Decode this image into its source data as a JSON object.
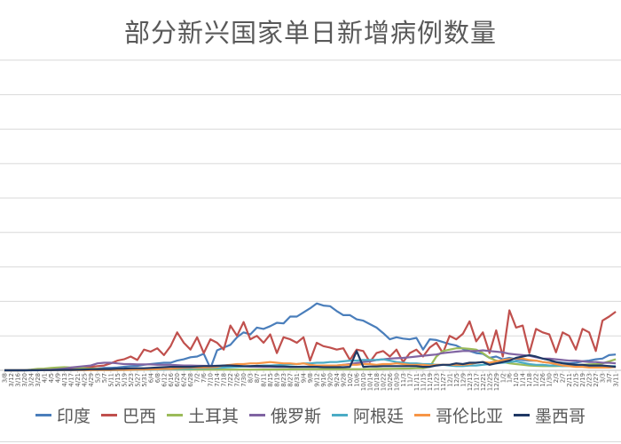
{
  "chart_data": {
    "type": "line",
    "title": "部分新兴国家单日新增病例数量",
    "xlabel": "",
    "ylabel": "",
    "ylim": [
      0,
      450
    ],
    "grid": true,
    "legend_position": "bottom",
    "x": [
      "3/8",
      "3/12",
      "3/16",
      "3/20",
      "3/24",
      "3/28",
      "4/1",
      "4/5",
      "4/9",
      "4/13",
      "4/17",
      "4/21",
      "4/25",
      "4/29",
      "5/3",
      "5/7",
      "5/11",
      "5/15",
      "5/19",
      "5/23",
      "5/27",
      "5/31",
      "6/4",
      "6/8",
      "6/12",
      "6/16",
      "6/20",
      "6/24",
      "6/28",
      "7/2",
      "7/6",
      "7/10",
      "7/14",
      "7/18",
      "7/22",
      "7/26",
      "7/30",
      "8/3",
      "8/7",
      "8/11",
      "8/15",
      "8/19",
      "8/23",
      "8/27",
      "8/31",
      "9/4",
      "9/8",
      "9/12",
      "9/16",
      "9/20",
      "9/24",
      "9/28",
      "10/2",
      "10/6",
      "10/10",
      "10/14",
      "10/18",
      "10/22",
      "10/26",
      "10/30",
      "11/3",
      "11/7",
      "11/11",
      "11/15",
      "11/19",
      "11/23",
      "11/27",
      "12/1",
      "12/5",
      "12/9",
      "12/13",
      "12/17",
      "12/21",
      "12/25",
      "12/29",
      "1/2",
      "1/6",
      "1/10",
      "1/14",
      "1/18",
      "1/22",
      "1/26",
      "1/30",
      "2/3",
      "2/7",
      "2/11",
      "2/15",
      "2/19",
      "2/23",
      "2/27",
      "3/3",
      "3/7",
      "3/11"
    ],
    "series": [
      {
        "name": "印度",
        "color": "#4a7ebb",
        "values": [
          0,
          0,
          0,
          0,
          0,
          0,
          0.4,
          0.6,
          0.8,
          1,
          1.2,
          1.5,
          1.8,
          2,
          2.5,
          3.3,
          3.6,
          4,
          5,
          6,
          6.5,
          8,
          9,
          10,
          11,
          11,
          14,
          16,
          19,
          20,
          24,
          3,
          29,
          33,
          37,
          48,
          55,
          52,
          62,
          60,
          64,
          69,
          68,
          78,
          78,
          84,
          90,
          97,
          94,
          93,
          86,
          80,
          80,
          74,
          72,
          67,
          62,
          54,
          45,
          48,
          46,
          45,
          47,
          30,
          45,
          44,
          41,
          38,
          36,
          31,
          28,
          25,
          24,
          18,
          20,
          16,
          18,
          16,
          15,
          14,
          14,
          12,
          11,
          12,
          11,
          10,
          11,
          13,
          14,
          16,
          17,
          22,
          23
        ]
      },
      {
        "name": "巴西",
        "color": "#c0504d",
        "values": [
          0,
          0,
          0,
          0.2,
          0.3,
          0.5,
          1,
          1,
          1.5,
          2,
          2.5,
          3,
          4,
          5,
          6,
          7,
          10,
          14,
          16,
          20,
          15,
          30,
          27,
          32,
          22,
          35,
          55,
          40,
          30,
          48,
          25,
          45,
          40,
          30,
          65,
          50,
          70,
          45,
          50,
          40,
          52,
          25,
          48,
          45,
          40,
          48,
          14,
          40,
          35,
          33,
          30,
          32,
          15,
          30,
          28,
          12,
          25,
          28,
          20,
          30,
          12,
          25,
          30,
          20,
          33,
          40,
          25,
          50,
          45,
          53,
          71,
          42,
          55,
          25,
          58,
          20,
          87,
          62,
          65,
          25,
          60,
          55,
          52,
          26,
          55,
          50,
          30,
          60,
          55,
          28,
          72,
          78,
          85
        ]
      },
      {
        "name": "土耳其",
        "color": "#9bbb59",
        "values": [
          0,
          0,
          0,
          0.3,
          1,
          2,
          2.5,
          3.5,
          4,
          4.5,
          4,
          3.5,
          3,
          2.5,
          2,
          1.8,
          1.5,
          1.5,
          1,
          1,
          1,
          1,
          1,
          1.5,
          1.5,
          1.5,
          1.3,
          1.3,
          1.2,
          1.1,
          1,
          1,
          1,
          1,
          1,
          1,
          1,
          1,
          1,
          1.2,
          1.2,
          1.2,
          1.3,
          1.4,
          1.5,
          1.6,
          1.7,
          1.7,
          1.7,
          1.8,
          1.8,
          1.7,
          1.7,
          1.7,
          1.7,
          1.8,
          1.9,
          2,
          2.2,
          2.3,
          2.4,
          2.6,
          3,
          3,
          5,
          20,
          28,
          30,
          32,
          32,
          31,
          30,
          25,
          18,
          14,
          12,
          10,
          9,
          8,
          7,
          6.5,
          6,
          6,
          6,
          6.5,
          7,
          7.5,
          8,
          8.5,
          9,
          10,
          13,
          16
        ]
      },
      {
        "name": "俄罗斯",
        "color": "#8064a2",
        "values": [
          0,
          0,
          0,
          0,
          0.3,
          0.5,
          0.8,
          1,
          1.5,
          2.5,
          4,
          5,
          6,
          7,
          10,
          11,
          11,
          10,
          9,
          9,
          8.5,
          8.5,
          8.5,
          8,
          8,
          8,
          7.5,
          7,
          7,
          6.7,
          6.5,
          6.5,
          6.4,
          6.1,
          6,
          5.8,
          5.5,
          5.3,
          5.2,
          5,
          4.9,
          4.8,
          4.8,
          4.9,
          5,
          5.1,
          5.3,
          5.5,
          5.8,
          6.2,
          7,
          8,
          9,
          10.5,
          12,
          13,
          15,
          16,
          17,
          17.5,
          18,
          19,
          20,
          21,
          22,
          23,
          25,
          26,
          27,
          28,
          28,
          28,
          29,
          28,
          27,
          26,
          24,
          23,
          22,
          21,
          19,
          17,
          17,
          16,
          15,
          14,
          14,
          13,
          12,
          12,
          11,
          11,
          10
        ]
      },
      {
        "name": "阿根廷",
        "color": "#4bacc6",
        "values": [
          0,
          0,
          0,
          0,
          0.1,
          0.1,
          0.1,
          0.1,
          0.1,
          0.1,
          0.1,
          0.1,
          0.1,
          0.2,
          0.2,
          0.2,
          0.2,
          0.3,
          0.4,
          0.5,
          0.7,
          0.8,
          0.9,
          1,
          1.2,
          1.5,
          2,
          2,
          2.5,
          2.8,
          3,
          3.5,
          3.5,
          4,
          4.5,
          5,
          5.5,
          6,
          6.5,
          7,
          7,
          7.5,
          8,
          8.5,
          9,
          10,
          10,
          11,
          11,
          12,
          12,
          13,
          14,
          14,
          15,
          15,
          15,
          16,
          14,
          12,
          11,
          10,
          10,
          9,
          9,
          8,
          8,
          7,
          6,
          6,
          7,
          7,
          8,
          9,
          10,
          11,
          12,
          13,
          11,
          9,
          8,
          8,
          7,
          7,
          6,
          6,
          6,
          6,
          6,
          6,
          6,
          6,
          6
        ]
      },
      {
        "name": "哥伦比亚",
        "color": "#f79646",
        "values": [
          0,
          0,
          0,
          0,
          0.1,
          0.1,
          0.1,
          0.1,
          0.2,
          0.2,
          0.2,
          0.3,
          0.3,
          0.3,
          0.4,
          0.5,
          0.5,
          0.6,
          0.7,
          0.8,
          1,
          1.2,
          1.4,
          1.6,
          2,
          2,
          3,
          3.5,
          4,
          4,
          4,
          4.5,
          5,
          7,
          8,
          9,
          9,
          10,
          10,
          11,
          12,
          11,
          10,
          10,
          9,
          10,
          8,
          7,
          7,
          7,
          7,
          8,
          8,
          8,
          9,
          9,
          8,
          9,
          9,
          10,
          9,
          8,
          8,
          8,
          7,
          8,
          8,
          8,
          8,
          8,
          9,
          11,
          12,
          11,
          13,
          15,
          16,
          17,
          17,
          15,
          14,
          12,
          11,
          9,
          7,
          6,
          5,
          5,
          4,
          4,
          4,
          4,
          5
        ]
      },
      {
        "name": "墨西哥",
        "color": "#1f3864",
        "values": [
          0,
          0,
          0,
          0,
          0.1,
          0.1,
          0.2,
          0.3,
          0.5,
          0.6,
          0.7,
          0.9,
          1.2,
          1.5,
          1.6,
          1.8,
          1.8,
          2.3,
          2.5,
          2.8,
          3,
          3,
          3.5,
          4,
          4.5,
          5,
          5,
          5,
          5,
          5.5,
          6,
          6,
          6.5,
          7,
          7,
          6.5,
          6,
          6,
          6.5,
          6,
          6,
          5.5,
          5.5,
          5,
          5,
          5,
          5,
          5,
          4.5,
          4.5,
          4.5,
          4.5,
          5,
          28,
          5,
          5.5,
          5.5,
          6,
          6,
          6,
          6,
          6,
          6,
          5,
          5,
          7,
          8,
          8,
          10,
          9,
          11,
          11,
          12,
          8,
          10,
          12,
          14,
          18,
          20,
          22,
          20,
          17,
          15,
          12,
          10,
          9,
          8,
          8,
          7,
          7,
          7,
          6,
          5
        ]
      }
    ]
  }
}
